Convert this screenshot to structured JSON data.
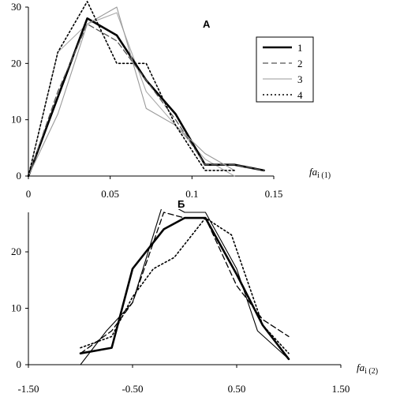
{
  "chart_data": [
    {
      "type": "line",
      "panel_label": "A",
      "xlabel": {
        "main": "fa",
        "sub": "i (1)"
      },
      "xlim": [
        0,
        0.15
      ],
      "ylim": [
        0,
        30
      ],
      "x_ticks": [
        "0",
        "0.05",
        "0.1",
        "0.15"
      ],
      "y_ticks": [
        "0",
        "10",
        "20",
        "30"
      ],
      "legend": {
        "entries": [
          "1",
          "2",
          "3",
          "4"
        ],
        "placement": "top-right"
      },
      "series": [
        {
          "name": "1",
          "style": "solid-thick",
          "color": "#000000",
          "points": [
            [
              0,
              0
            ],
            [
              0.018,
              14
            ],
            [
              0.036,
              28
            ],
            [
              0.054,
              25
            ],
            [
              0.072,
              17
            ],
            [
              0.09,
              11
            ],
            [
              0.108,
              2
            ],
            [
              0.126,
              2
            ],
            [
              0.144,
              1
            ]
          ]
        },
        {
          "name": "2",
          "style": "dashed",
          "color": "#555555",
          "points": [
            [
              0,
              0
            ],
            [
              0.018,
              15
            ],
            [
              0.036,
              27
            ],
            [
              0.054,
              24
            ],
            [
              0.072,
              17
            ],
            [
              0.09,
              10
            ],
            [
              0.108,
              2
            ],
            [
              0.126,
              2
            ],
            [
              0.144,
              1
            ]
          ]
        },
        {
          "name": "3",
          "style": "solid-thin",
          "color": "#999999",
          "points": [
            [
              0,
              0
            ],
            [
              0.018,
              11
            ],
            [
              0.036,
              27
            ],
            [
              0.054,
              30
            ],
            [
              0.072,
              12
            ],
            [
              0.09,
              9
            ],
            [
              0.108,
              4
            ],
            [
              0.126,
              1
            ]
          ]
        },
        {
          "name": "4",
          "style": "dotted",
          "color": "#000000",
          "points": [
            [
              0,
              0
            ],
            [
              0.018,
              22
            ],
            [
              0.036,
              31
            ],
            [
              0.054,
              20
            ],
            [
              0.072,
              20
            ],
            [
              0.09,
              9
            ],
            [
              0.108,
              1
            ],
            [
              0.126,
              1
            ]
          ]
        },
        {
          "name": "",
          "style": "solid-thin",
          "color": "#aaaaaa",
          "points": [
            [
              0,
              0
            ],
            [
              0.018,
              22
            ],
            [
              0.036,
              27
            ],
            [
              0.054,
              29
            ],
            [
              0.072,
              15
            ],
            [
              0.09,
              9
            ],
            [
              0.108,
              3
            ],
            [
              0.126,
              0
            ]
          ]
        }
      ]
    },
    {
      "type": "line",
      "panel_label": "Б",
      "xlabel": {
        "main": "fa",
        "sub": "i (2)"
      },
      "xlim": [
        -1.5,
        1.5
      ],
      "ylim": [
        0,
        27
      ],
      "x_ticks": [
        "-1.50",
        "-0.50",
        "0.50",
        "1.50"
      ],
      "y_ticks": [
        "0",
        "10",
        "20"
      ],
      "series": [
        {
          "name": "1",
          "style": "solid-thick",
          "color": "#000000",
          "points": [
            [
              -1.0,
              2
            ],
            [
              -0.7,
              3
            ],
            [
              -0.5,
              17
            ],
            [
              -0.2,
              24
            ],
            [
              0.0,
              26
            ],
            [
              0.2,
              26
            ],
            [
              0.5,
              16
            ],
            [
              0.75,
              7
            ],
            [
              1.0,
              1
            ]
          ]
        },
        {
          "name": "2",
          "style": "dashed",
          "color": "#000000",
          "points": [
            [
              -1.0,
              2
            ],
            [
              -0.7,
              6
            ],
            [
              -0.5,
              11
            ],
            [
              -0.2,
              27
            ],
            [
              0.0,
              26
            ],
            [
              0.2,
              26
            ],
            [
              0.5,
              14
            ],
            [
              0.75,
              8
            ],
            [
              1.0,
              5
            ]
          ]
        },
        {
          "name": "3",
          "style": "solid-thin",
          "color": "#000000",
          "points": [
            [
              -1.0,
              0
            ],
            [
              -0.75,
              6
            ],
            [
              -0.5,
              11
            ],
            [
              -0.2,
              29
            ],
            [
              0.0,
              27
            ],
            [
              0.2,
              27
            ],
            [
              0.5,
              17
            ],
            [
              0.7,
              6
            ],
            [
              1.0,
              1
            ]
          ]
        },
        {
          "name": "4",
          "style": "dotted",
          "color": "#000000",
          "points": [
            [
              -1.0,
              3
            ],
            [
              -0.7,
              5
            ],
            [
              -0.5,
              12
            ],
            [
              -0.3,
              17
            ],
            [
              -0.1,
              19
            ],
            [
              0.2,
              26
            ],
            [
              0.45,
              23
            ],
            [
              0.75,
              7
            ],
            [
              1.0,
              2
            ]
          ]
        }
      ]
    }
  ]
}
